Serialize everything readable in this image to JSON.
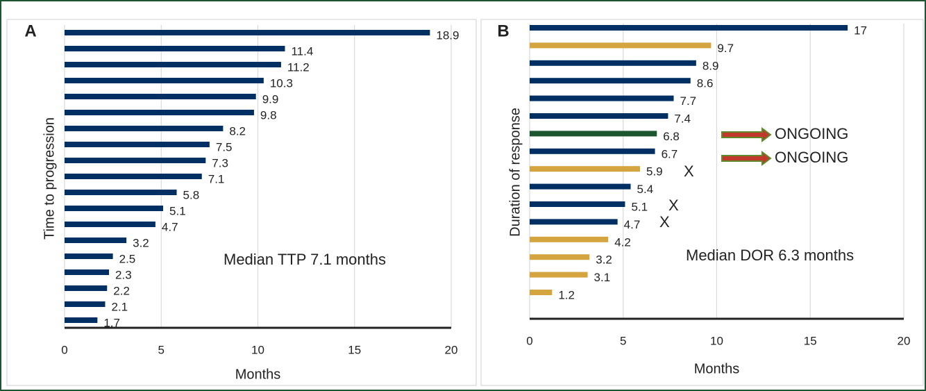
{
  "chart_data": [
    {
      "type": "bar",
      "orientation": "horizontal",
      "panel_label": "A",
      "xlabel": "Months",
      "ylabel": "Time to progression",
      "values": [
        18.9,
        11.4,
        11.2,
        10.3,
        9.9,
        9.8,
        8.2,
        7.5,
        7.3,
        7.1,
        5.8,
        5.1,
        4.7,
        3.2,
        2.5,
        2.3,
        2.2,
        2.1,
        1.7
      ],
      "color": "#003063",
      "xlim": [
        0,
        20
      ],
      "xticks": [
        0,
        5,
        10,
        15,
        20
      ],
      "grid": true,
      "annotations": [
        "Median TTP 7.1 months"
      ]
    },
    {
      "type": "bar",
      "orientation": "horizontal",
      "panel_label": "B",
      "xlabel": "Months",
      "ylabel": "Duration of response",
      "values": [
        17,
        9.7,
        8.9,
        8.6,
        7.7,
        7.4,
        6.8,
        6.7,
        5.9,
        5.4,
        5.1,
        4.7,
        4.2,
        3.2,
        3.1,
        1.2
      ],
      "colors": [
        "#003063",
        "#d4a53f",
        "#003063",
        "#003063",
        "#003063",
        "#003063",
        "#1c5631",
        "#003063",
        "#d4a53f",
        "#003063",
        "#003063",
        "#003063",
        "#d4a53f",
        "#d4a53f",
        "#d4a53f",
        "#d4a53f"
      ],
      "xlim": [
        0,
        20
      ],
      "xticks": [
        0,
        5,
        10,
        15,
        20
      ],
      "grid": true,
      "annotations": [
        "Median DOR 6.3 months",
        "ONGOING",
        "ONGOING",
        "X",
        "X",
        "X"
      ]
    }
  ]
}
